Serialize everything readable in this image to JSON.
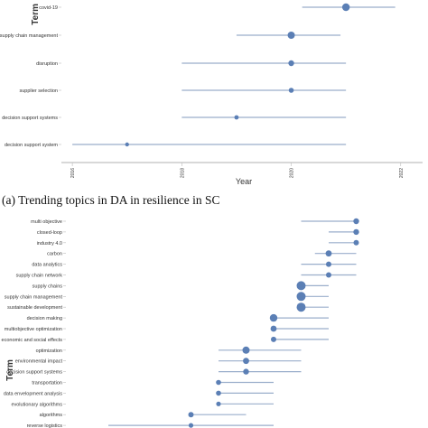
{
  "colors": {
    "line": "#9aaecb",
    "dot": "#5b7fb5",
    "axis": "#999999",
    "tick": "#bbbbbb"
  },
  "caption_a": "(a) Trending topics in DA in resilience in SC",
  "chart_data": [
    {
      "type": "scatter",
      "xlabel": "Year",
      "ylabel": "Term",
      "xlim": [
        2015.8,
        2022.4
      ],
      "x_ticks": [
        "2016",
        "2018",
        "2020",
        "2022"
      ],
      "grid": false,
      "terms": [
        {
          "label": "covid-19",
          "start": 2020.2,
          "end": 2021.9,
          "median": 2021.0,
          "size": 4.2
        },
        {
          "label": "supply chain management",
          "start": 2019.0,
          "end": 2020.9,
          "median": 2020.0,
          "size": 4.0
        },
        {
          "label": "disruption",
          "start": 2018.0,
          "end": 2021.0,
          "median": 2020.0,
          "size": 3.2
        },
        {
          "label": "supplier selection",
          "start": 2018.0,
          "end": 2021.0,
          "median": 2020.0,
          "size": 2.8
        },
        {
          "label": "decision support systems",
          "start": 2018.0,
          "end": 2021.0,
          "median": 2019.0,
          "size": 2.4
        },
        {
          "label": "decision support system",
          "start": 2016.0,
          "end": 2021.0,
          "median": 2017.0,
          "size": 2.2
        }
      ]
    },
    {
      "type": "scatter",
      "xlabel": "",
      "ylabel": "Term",
      "grid": false,
      "terms": [
        {
          "label": "multi objective",
          "start": 2020.0,
          "end": 2022.0,
          "median": 2022.0,
          "size": 3.2
        },
        {
          "label": "closed-loop",
          "start": 2021.0,
          "end": 2022.0,
          "median": 2022.0,
          "size": 3.2
        },
        {
          "label": "industry 4.0",
          "start": 2021.0,
          "end": 2022.0,
          "median": 2022.0,
          "size": 3.0
        },
        {
          "label": "carbon",
          "start": 2020.5,
          "end": 2022.0,
          "median": 2021.0,
          "size": 3.4
        },
        {
          "label": "data analytics",
          "start": 2020.0,
          "end": 2022.0,
          "median": 2021.0,
          "size": 3.0
        },
        {
          "label": "supply chain network",
          "start": 2020.0,
          "end": 2022.0,
          "median": 2021.0,
          "size": 3.0
        },
        {
          "label": "supply chains",
          "start": 2020.0,
          "end": 2021.0,
          "median": 2020.0,
          "size": 5.0
        },
        {
          "label": "supply chain management",
          "start": 2020.0,
          "end": 2021.0,
          "median": 2020.0,
          "size": 5.0
        },
        {
          "label": "sustainable development",
          "start": 2020.0,
          "end": 2021.0,
          "median": 2020.0,
          "size": 5.0
        },
        {
          "label": "decision making",
          "start": 2019.0,
          "end": 2021.0,
          "median": 2019.0,
          "size": 4.2
        },
        {
          "label": "multiobjective optimization",
          "start": 2019.0,
          "end": 2021.0,
          "median": 2019.0,
          "size": 3.4
        },
        {
          "label": "economic and social effects",
          "start": 2019.0,
          "end": 2021.0,
          "median": 2019.0,
          "size": 3.0
        },
        {
          "label": "optimization",
          "start": 2017.0,
          "end": 2020.0,
          "median": 2018.0,
          "size": 4.0
        },
        {
          "label": "environmental impact",
          "start": 2017.0,
          "end": 2020.0,
          "median": 2018.0,
          "size": 3.4
        },
        {
          "label": "decision support systems",
          "start": 2017.0,
          "end": 2020.0,
          "median": 2018.0,
          "size": 3.2
        },
        {
          "label": "transportation",
          "start": 2017.0,
          "end": 2019.0,
          "median": 2017.0,
          "size": 2.8
        },
        {
          "label": "data envelopment analysis",
          "start": 2017.0,
          "end": 2019.0,
          "median": 2017.0,
          "size": 2.8
        },
        {
          "label": "evolutionary algorithms",
          "start": 2017.0,
          "end": 2019.0,
          "median": 2017.0,
          "size": 2.6
        },
        {
          "label": "algorithms",
          "start": 2016.0,
          "end": 2018.0,
          "median": 2016.0,
          "size": 3.0
        },
        {
          "label": "reverse logistics",
          "start": 2013.0,
          "end": 2019.0,
          "median": 2016.0,
          "size": 2.6
        }
      ]
    }
  ]
}
